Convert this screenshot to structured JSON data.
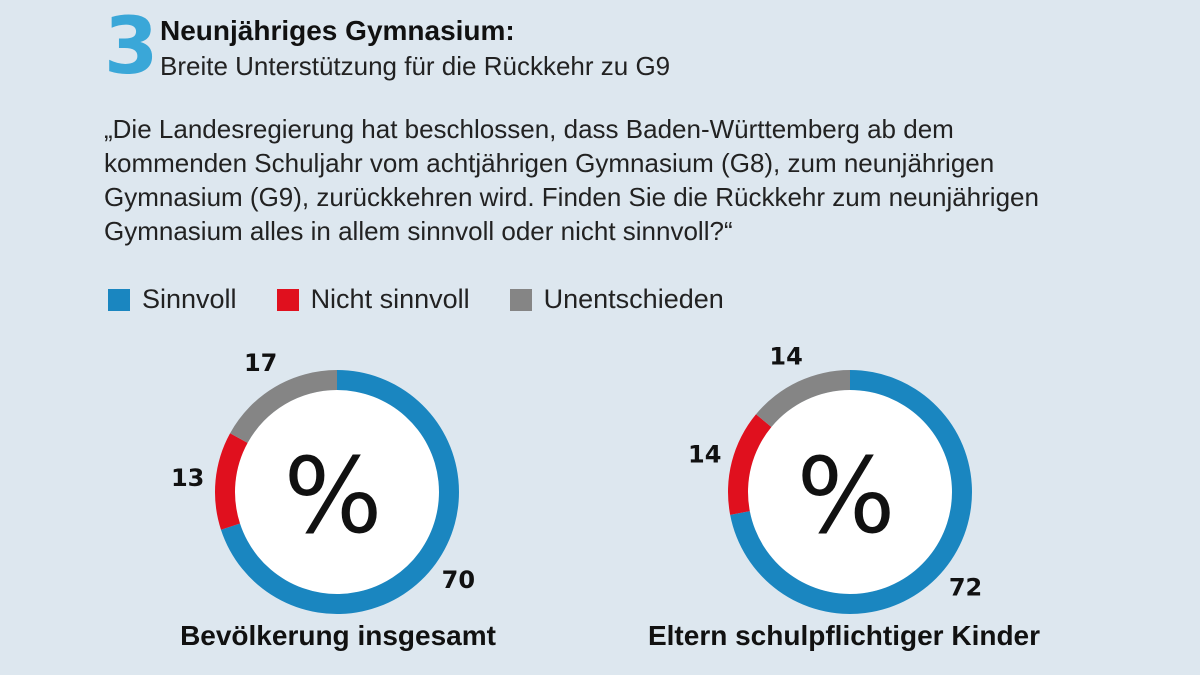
{
  "header": {
    "number": "3",
    "title": "Neunjähriges Gymnasium:",
    "subtitle": "Breite Unterstützung für die Rückkehr zu G9"
  },
  "question": "„Die Landesregierung hat beschlossen, dass Baden-Württemberg ab dem kommenden Schuljahr vom achtjährigen Gymnasium (G8), zum neunjährigen Gymnasium (G9), zurückkehren wird. Finden Sie die Rückkehr zum neunjährigen Gymnasium alles in allem sinnvoll oder nicht sinnvoll?“",
  "legend": [
    {
      "label": "Sinnvoll",
      "color": "#1a86c0"
    },
    {
      "label": "Nicht sinnvoll",
      "color": "#e0101e"
    },
    {
      "label": "Unentschieden",
      "color": "#858585"
    }
  ],
  "chart_data": [
    {
      "type": "pie",
      "variant": "donut",
      "title": "Bevölkerung insgesamt",
      "center_label": "%",
      "categories": [
        "Sinnvoll",
        "Nicht sinnvoll",
        "Unentschieden"
      ],
      "values": [
        70,
        13,
        17
      ]
    },
    {
      "type": "pie",
      "variant": "donut",
      "title": "Eltern schulpflichtiger Kinder",
      "center_label": "%",
      "categories": [
        "Sinnvoll",
        "Nicht sinnvoll",
        "Unentschieden"
      ],
      "values": [
        72,
        14,
        14
      ]
    }
  ]
}
